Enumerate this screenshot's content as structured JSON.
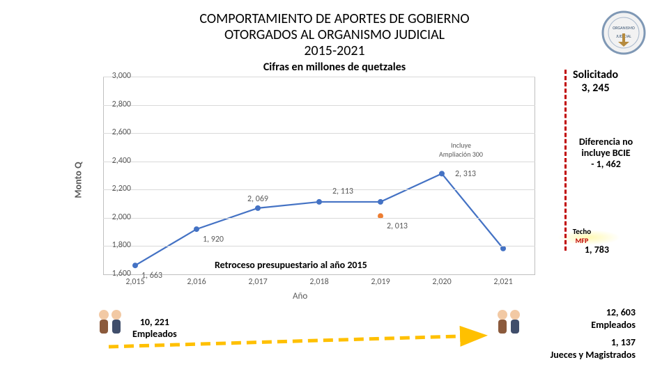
{
  "title": {
    "line1": "COMPORTAMIENTO DE APORTES DE GOBIERNO",
    "line2": "OTORGADOS AL ORGANISMO JUDICIAL",
    "line3": "2015-2021",
    "subtitle": "Cifras en millones de quetzales"
  },
  "solicitado": {
    "label": "Solicitado",
    "value": "3, 245"
  },
  "diferencia": {
    "l1": "Diferencia no",
    "l2": "incluye BCIE",
    "l3": "- 1, 462"
  },
  "techo": {
    "t1": "Techo",
    "t2": "MFP",
    "value": "1, 783"
  },
  "retroceso": "Retroceso presupuestario al año 2015",
  "incluye": {
    "l1": "Incluye",
    "l2": "Ampliación 300"
  },
  "empleados_left": {
    "count": "10, 221",
    "label": "Empleados"
  },
  "empleados_right": {
    "count": "12, 603",
    "label": "Empleados",
    "jueces_count": "1, 137",
    "jueces_label": "Jueces y Magistrados"
  },
  "chart": {
    "type": "line",
    "ylabel": "Monto Q",
    "xlabel": "Año",
    "ylim": [
      1600,
      3000
    ],
    "ytick_step": 200,
    "yticks": [
      "1,600",
      "1,800",
      "2,000",
      "2,200",
      "2,400",
      "2,600",
      "2,800",
      "3,000"
    ],
    "categories": [
      "2,015",
      "2,016",
      "2,017",
      "2,018",
      "2,019",
      "2,020",
      "2,021"
    ],
    "series": [
      {
        "name": "line-a",
        "color": "#4472c4",
        "marker": "circle",
        "points": [
          {
            "x": 0,
            "y": 1663,
            "label": "1, 663",
            "lp": "below-right"
          },
          {
            "x": 1,
            "y": 1920,
            "label": "1, 920",
            "lp": "below-right"
          },
          {
            "x": 2,
            "y": 2069,
            "label": "2, 069",
            "lp": "above"
          },
          {
            "x": 3,
            "y": 2113,
            "label": "2, 113",
            "lp": "above-right"
          },
          {
            "x": 4,
            "y": 2113,
            "label": "",
            "lp": ""
          },
          {
            "x": 5,
            "y": 2313,
            "label": "2, 313",
            "lp": "right"
          },
          {
            "x": 6,
            "y": 1783,
            "label": "",
            "lp": ""
          }
        ]
      },
      {
        "name": "line-b",
        "color": "#ed7d31",
        "marker": "circle",
        "points": [
          {
            "x": 4,
            "y": 2013,
            "label": "2, 013",
            "lp": "below-right"
          }
        ]
      }
    ],
    "grid_color": "#d9d9d9",
    "axis_color": "#bfbfbf",
    "tick_font_size": 12,
    "tick_color": "#595959",
    "background": "#ffffff"
  },
  "colors": {
    "red_dash": "#c00000",
    "arrow_yellow": "#ffc000",
    "highlight": "#fff9b3"
  }
}
